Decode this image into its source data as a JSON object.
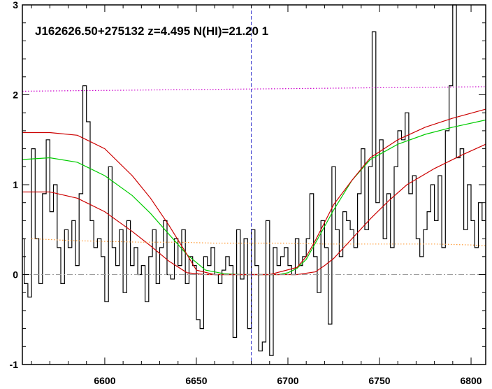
{
  "chart_data": {
    "type": "line",
    "title": "J162626.50+275132 z=4.495 N(HI)=21.20 1",
    "xlabel": "",
    "ylabel": "",
    "xlim": [
      6555,
      6808
    ],
    "ylim": [
      -1.0,
      3.0
    ],
    "x_ticks": [
      6600,
      6650,
      6700,
      6750,
      6800
    ],
    "x_tick_labels": [
      "6600",
      "6650",
      "6700",
      "6750",
      "6800"
    ],
    "y_ticks": [
      -1,
      0,
      1,
      2,
      3
    ],
    "y_tick_labels": [
      "-1",
      "0",
      "1",
      "2",
      "3"
    ],
    "grid": false,
    "legend": "none",
    "vline": {
      "x": 6680,
      "color": "#3333cc",
      "style": "dashed"
    },
    "hline": {
      "y": 0,
      "color": "#999999",
      "style": "dash-dot"
    },
    "colors": {
      "flux": "#000000",
      "model": "#00cc00",
      "model_bounds": "#cc0000",
      "continuum": "#cc00cc",
      "error": "#ff9933"
    },
    "series": [
      {
        "style": "step",
        "x": [
          6555,
          6557,
          6559,
          6561,
          6563,
          6565,
          6567,
          6569,
          6571,
          6573,
          6575,
          6577,
          6579,
          6581,
          6583,
          6585,
          6587,
          6589,
          6591,
          6593,
          6595,
          6597,
          6599,
          6601,
          6603,
          6605,
          6607,
          6609,
          6611,
          6613,
          6615,
          6617,
          6619,
          6621,
          6623,
          6625,
          6627,
          6629,
          6631,
          6633,
          6635,
          6637,
          6639,
          6641,
          6643,
          6645,
          6647,
          6649,
          6651,
          6653,
          6655,
          6657,
          6659,
          6661,
          6663,
          6665,
          6667,
          6669,
          6671,
          6673,
          6675,
          6677,
          6679,
          6681,
          6683,
          6685,
          6687,
          6689,
          6691,
          6693,
          6695,
          6697,
          6699,
          6701,
          6703,
          6705,
          6707,
          6709,
          6711,
          6713,
          6715,
          6717,
          6719,
          6721,
          6723,
          6725,
          6727,
          6729,
          6731,
          6733,
          6735,
          6737,
          6739,
          6741,
          6743,
          6745,
          6747,
          6749,
          6751,
          6753,
          6755,
          6757,
          6759,
          6761,
          6763,
          6765,
          6767,
          6769,
          6771,
          6773,
          6775,
          6777,
          6779,
          6781,
          6783,
          6785,
          6787,
          6789,
          6791,
          6793,
          6795,
          6797,
          6799,
          6801,
          6803,
          6805,
          6807
        ],
        "y": [
          0.4,
          -0.1,
          -0.25,
          1.4,
          0.4,
          -0.1,
          0.9,
          1.5,
          0.7,
          1.0,
          0.3,
          -0.1,
          0.5,
          0.3,
          0.6,
          0.1,
          0.9,
          2.1,
          1.7,
          0.6,
          0.3,
          0.4,
          0.2,
          -0.3,
          1.2,
          0.3,
          0.1,
          0.5,
          -0.2,
          0.6,
          0.1,
          0.3,
          0.0,
          0.1,
          -0.3,
          0.2,
          0.5,
          -0.1,
          0.3,
          0.6,
          0.0,
          -0.05,
          0.4,
          0.1,
          0.5,
          -0.1,
          0.2,
          0.1,
          -0.5,
          -0.6,
          0.2,
          0.1,
          0.3,
          0.0,
          -0.1,
          0.05,
          0.2,
          0.1,
          -0.7,
          0.5,
          -0.05,
          0.4,
          -0.6,
          0.5,
          0.1,
          -0.85,
          -0.75,
          0.6,
          -0.9,
          0.3,
          0.1,
          0.2,
          0.3,
          0.1,
          0.0,
          0.4,
          0.1,
          0.2,
          0.4,
          0.9,
          0.2,
          -0.2,
          0.6,
          0.3,
          -0.55,
          1.2,
          0.5,
          0.2,
          0.7,
          0.6,
          0.5,
          0.3,
          0.9,
          1.4,
          0.5,
          1.2,
          2.7,
          0.8,
          1.5,
          0.4,
          0.9,
          0.3,
          1.2,
          1.6,
          1.5,
          1.8,
          0.9,
          1.1,
          0.4,
          0.2,
          0.5,
          0.7,
          1.0,
          0.6,
          1.1,
          0.3,
          1.6,
          2.1,
          3.0,
          1.3,
          1.4,
          0.5,
          1.0,
          0.6,
          0.3,
          0.8,
          0.6
        ]
      },
      {
        "style": "line",
        "x": [
          6555,
          6570,
          6585,
          6600,
          6615,
          6625,
          6635,
          6645,
          6655,
          6665,
          6675,
          6685,
          6695,
          6700,
          6705,
          6710,
          6715,
          6725,
          6735,
          6745,
          6760,
          6775,
          6790,
          6808
        ],
        "y": [
          1.28,
          1.3,
          1.25,
          1.1,
          0.88,
          0.68,
          0.45,
          0.22,
          0.05,
          0.01,
          0.0,
          0.0,
          0.0,
          0.02,
          0.07,
          0.17,
          0.35,
          0.72,
          1.05,
          1.28,
          1.45,
          1.56,
          1.64,
          1.72
        ]
      },
      {
        "style": "line",
        "x": [
          6555,
          6570,
          6585,
          6600,
          6615,
          6625,
          6635,
          6645,
          6650,
          6660,
          6675,
          6690,
          6705,
          6710,
          6715,
          6720,
          6725,
          6735,
          6745,
          6760,
          6775,
          6790,
          6808
        ],
        "y": [
          1.58,
          1.58,
          1.55,
          1.4,
          1.1,
          0.85,
          0.55,
          0.22,
          0.05,
          0.0,
          0.0,
          0.0,
          0.08,
          0.2,
          0.38,
          0.58,
          0.78,
          1.05,
          1.3,
          1.5,
          1.64,
          1.74,
          1.84
        ]
      },
      {
        "style": "line",
        "x": [
          6555,
          6570,
          6585,
          6600,
          6615,
          6625,
          6635,
          6645,
          6655,
          6665,
          6675,
          6690,
          6705,
          6715,
          6720,
          6725,
          6735,
          6745,
          6755,
          6765,
          6780,
          6795,
          6808
        ],
        "y": [
          0.92,
          0.92,
          0.85,
          0.7,
          0.48,
          0.32,
          0.15,
          0.02,
          0.0,
          0.0,
          0.0,
          0.0,
          0.0,
          0.03,
          0.1,
          0.18,
          0.4,
          0.62,
          0.82,
          1.0,
          1.18,
          1.33,
          1.45
        ]
      },
      {
        "style": "line",
        "x": [
          6555,
          6808
        ],
        "y": [
          2.04,
          2.09
        ]
      },
      {
        "style": "line",
        "x": [
          6560,
          6580,
          6600,
          6620,
          6640,
          6660,
          6680,
          6700,
          6720,
          6740,
          6760,
          6780,
          6800,
          6808
        ],
        "y": [
          0.4,
          0.38,
          0.37,
          0.36,
          0.36,
          0.35,
          0.35,
          0.35,
          0.34,
          0.34,
          0.34,
          0.34,
          0.33,
          0.32
        ]
      }
    ]
  }
}
